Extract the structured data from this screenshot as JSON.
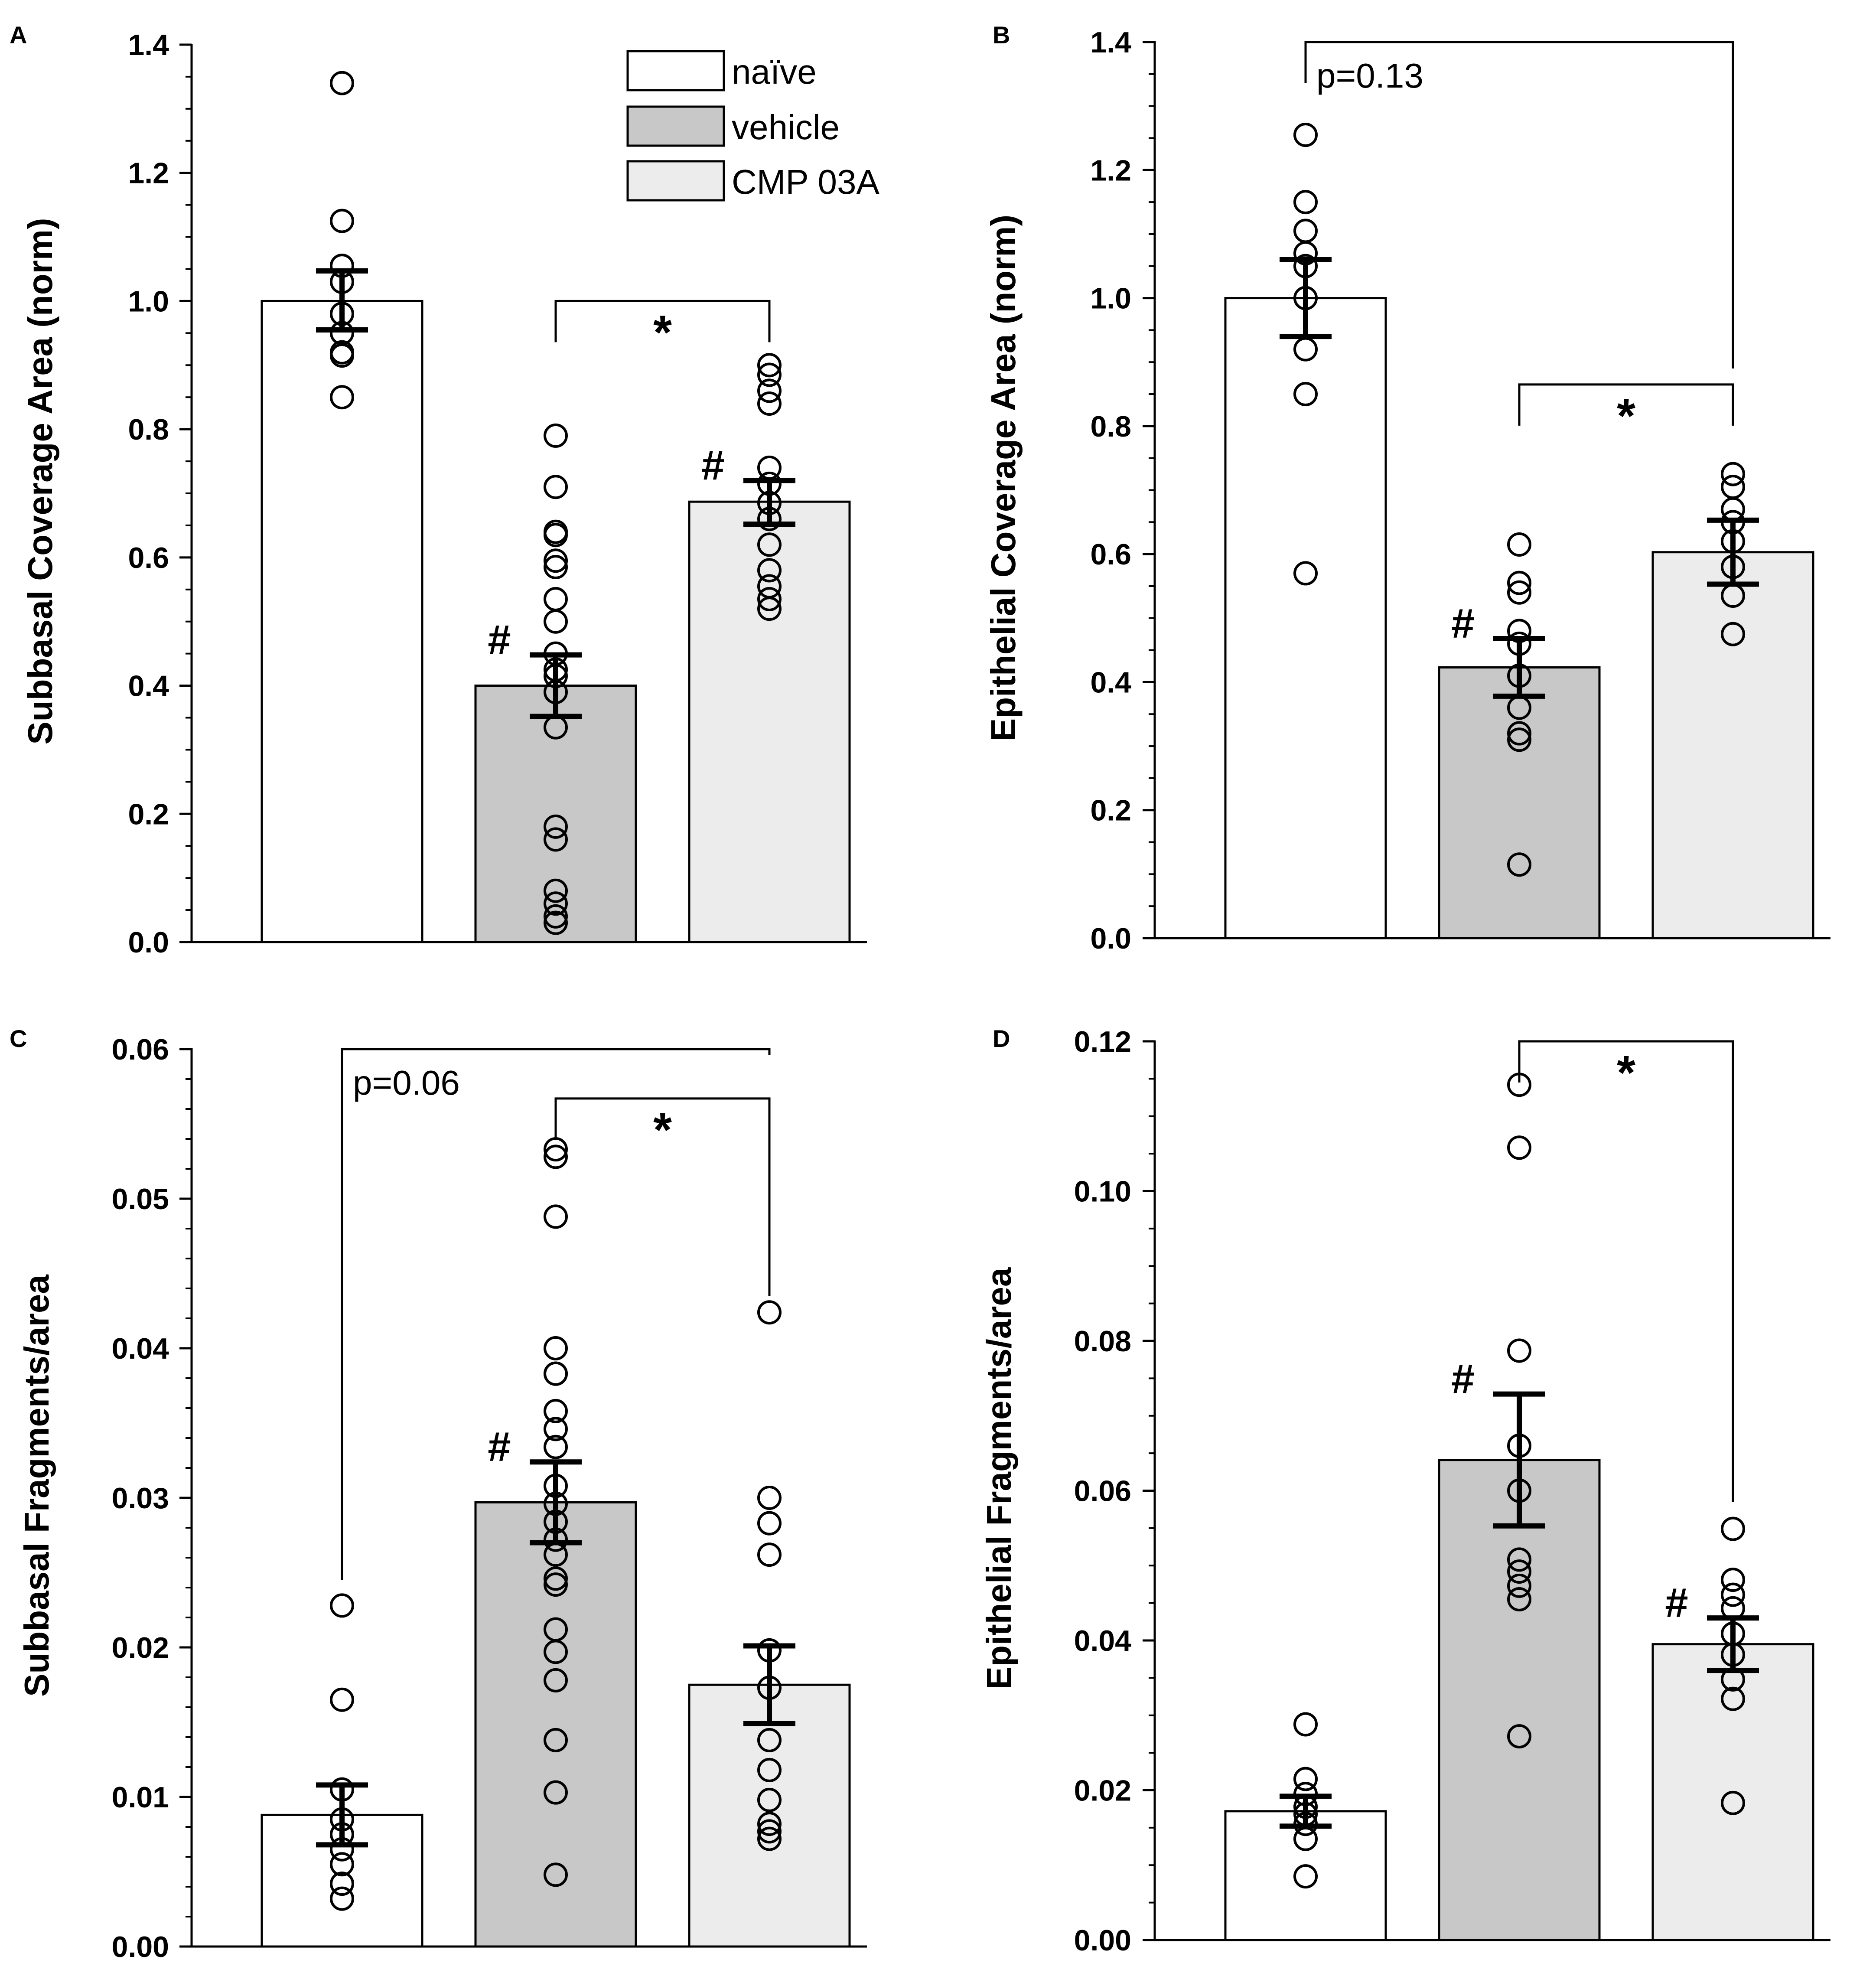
{
  "legend": {
    "entries": [
      {
        "label": "naïve",
        "color": "#ffffff"
      },
      {
        "label": "vehicle",
        "color": "#c8c8c8"
      },
      {
        "label": "CMP 03A",
        "color": "#ececec"
      }
    ]
  },
  "colors": {
    "naive": "#ffffff",
    "vehicle": "#c8c8c8",
    "cmp03a": "#ececec",
    "stroke": "#000000"
  },
  "chart_data": [
    {
      "panel": "A",
      "type": "bar",
      "categories": [
        "naïve",
        "vehicle",
        "CMP 03A"
      ],
      "ylabel": "Subbasal Coverage Area (norm)",
      "ylim": [
        0,
        1.4
      ],
      "yticks": [
        0.0,
        0.2,
        0.4,
        0.6,
        0.8,
        1.0,
        1.2,
        1.4
      ],
      "tick_labels": [
        "0.0",
        "0.2",
        "0.4",
        "0.6",
        "0.8",
        "1.0",
        "1.2",
        "1.4"
      ],
      "minor_step": 0.05,
      "values": [
        1.0,
        0.4,
        0.687
      ],
      "errors": [
        [
          0.955,
          1.047
        ],
        [
          0.352,
          0.448
        ],
        [
          0.652,
          0.72
        ]
      ],
      "points": [
        [
          1.34,
          1.125,
          1.055,
          1.03,
          0.98,
          0.95,
          0.92,
          0.915,
          0.85
        ],
        [
          0.79,
          0.71,
          0.64,
          0.635,
          0.595,
          0.585,
          0.535,
          0.5,
          0.45,
          0.425,
          0.415,
          0.39,
          0.335,
          0.18,
          0.16,
          0.08,
          0.06,
          0.04,
          0.03
        ],
        [
          0.9,
          0.885,
          0.86,
          0.84,
          0.74,
          0.715,
          0.685,
          0.66,
          0.62,
          0.58,
          0.555,
          0.535,
          0.52
        ]
      ],
      "markers": [
        {
          "type": "hash",
          "label": "#",
          "bar": 1
        },
        {
          "type": "hash",
          "label": "#",
          "bar": 2
        }
      ],
      "brackets": [
        {
          "from": 1,
          "to": 2,
          "y": 1.0,
          "label": "*",
          "label_style": "star"
        }
      ]
    },
    {
      "panel": "B",
      "type": "bar",
      "categories": [
        "naïve",
        "vehicle",
        "CMP 03A"
      ],
      "ylabel": "Epithelial Coverage Area (norm)",
      "ylim": [
        0,
        1.4
      ],
      "yticks": [
        0.0,
        0.2,
        0.4,
        0.6,
        0.8,
        1.0,
        1.2,
        1.4
      ],
      "tick_labels": [
        "0.0",
        "0.2",
        "0.4",
        "0.6",
        "0.8",
        "1.0",
        "1.2",
        "1.4"
      ],
      "minor_step": 0.05,
      "values": [
        1.0,
        0.423,
        0.603
      ],
      "errors": [
        [
          0.94,
          1.06
        ],
        [
          0.378,
          0.468
        ],
        [
          0.553,
          0.653
        ]
      ],
      "points": [
        [
          1.255,
          1.15,
          1.105,
          1.07,
          1.05,
          1.0,
          0.92,
          0.85,
          0.57
        ],
        [
          0.615,
          0.555,
          0.54,
          0.48,
          0.46,
          0.41,
          0.36,
          0.32,
          0.31,
          0.115
        ],
        [
          0.725,
          0.705,
          0.67,
          0.65,
          0.62,
          0.58,
          0.535,
          0.475
        ]
      ],
      "markers": [
        {
          "type": "hash",
          "label": "#",
          "bar": 1
        }
      ],
      "brackets": [
        {
          "from": 0,
          "to": 2,
          "y": 1.4,
          "label": "p=0.13",
          "label_style": "ptext",
          "tip_to": 0.89
        },
        {
          "from": 1,
          "to": 2,
          "y": 0.865,
          "label": "*",
          "label_style": "star"
        }
      ]
    },
    {
      "panel": "C",
      "type": "bar",
      "categories": [
        "naïve",
        "vehicle",
        "CMP 03A"
      ],
      "ylabel": "Subbasal Fragments/area",
      "ylim": [
        0,
        0.06
      ],
      "yticks": [
        0.0,
        0.01,
        0.02,
        0.03,
        0.04,
        0.05,
        0.06
      ],
      "tick_labels": [
        "0.00",
        "0.01",
        "0.02",
        "0.03",
        "0.04",
        "0.05",
        "0.06"
      ],
      "minor_step": 0.002,
      "values": [
        0.0088,
        0.0297,
        0.0175
      ],
      "errors": [
        [
          0.0068,
          0.0108
        ],
        [
          0.027,
          0.0324
        ],
        [
          0.0149,
          0.0201
        ]
      ],
      "points": [
        [
          0.0228,
          0.0165,
          0.0105,
          0.0085,
          0.0075,
          0.0065,
          0.0055,
          0.0042,
          0.0032
        ],
        [
          0.0533,
          0.0528,
          0.0488,
          0.04,
          0.0383,
          0.0383,
          0.0358,
          0.0346,
          0.0334,
          0.0308,
          0.0296,
          0.0284,
          0.0272,
          0.0262,
          0.0246,
          0.0242,
          0.0212,
          0.0197,
          0.0178,
          0.0138,
          0.0103,
          0.0048
        ],
        [
          0.0424,
          0.03,
          0.0283,
          0.0262,
          0.0198,
          0.0173,
          0.0138,
          0.0118,
          0.0098,
          0.0082,
          0.0077,
          0.0072
        ]
      ],
      "markers": [
        {
          "type": "hash",
          "label": "#",
          "bar": 1
        }
      ],
      "brackets": [
        {
          "from": 0,
          "to": 2,
          "y": 0.06,
          "label": "p=0.06",
          "label_style": "ptext",
          "tip_from": 0.0245,
          "tip_to": 0.0596
        },
        {
          "from": 1,
          "to": 2,
          "y": 0.0567,
          "label": "*",
          "label_style": "star",
          "tip_to": 0.0435
        }
      ]
    },
    {
      "panel": "D",
      "type": "bar",
      "categories": [
        "naïve",
        "vehicle",
        "CMP 03A"
      ],
      "ylabel": "Epithelial Fragments/area",
      "ylim": [
        0,
        0.12
      ],
      "yticks": [
        0.0,
        0.02,
        0.04,
        0.06,
        0.08,
        0.1,
        0.12
      ],
      "tick_labels": [
        "0.00",
        "0.02",
        "0.04",
        "0.06",
        "0.08",
        "0.10",
        "0.12"
      ],
      "minor_step": 0.005,
      "values": [
        0.0172,
        0.0641,
        0.0395
      ],
      "errors": [
        [
          0.0152,
          0.0192
        ],
        [
          0.0553,
          0.0729
        ],
        [
          0.036,
          0.043
        ]
      ],
      "points": [
        [
          0.0288,
          0.0215,
          0.0195,
          0.0178,
          0.0168,
          0.0155,
          0.0135,
          0.0085
        ],
        [
          0.1142,
          0.1058,
          0.0787,
          0.066,
          0.06,
          0.0508,
          0.0492,
          0.0473,
          0.0455,
          0.0272
        ],
        [
          0.0549,
          0.0481,
          0.0461,
          0.0443,
          0.0409,
          0.0381,
          0.0348,
          0.0322,
          0.0183
        ]
      ],
      "markers": [
        {
          "type": "hash",
          "label": "#",
          "bar": 1
        },
        {
          "type": "hash",
          "label": "#",
          "bar": 2
        }
      ],
      "brackets": [
        {
          "from": 1,
          "to": 2,
          "y": 0.12,
          "label": "*",
          "label_style": "star",
          "tip_to": 0.0585
        }
      ]
    }
  ]
}
